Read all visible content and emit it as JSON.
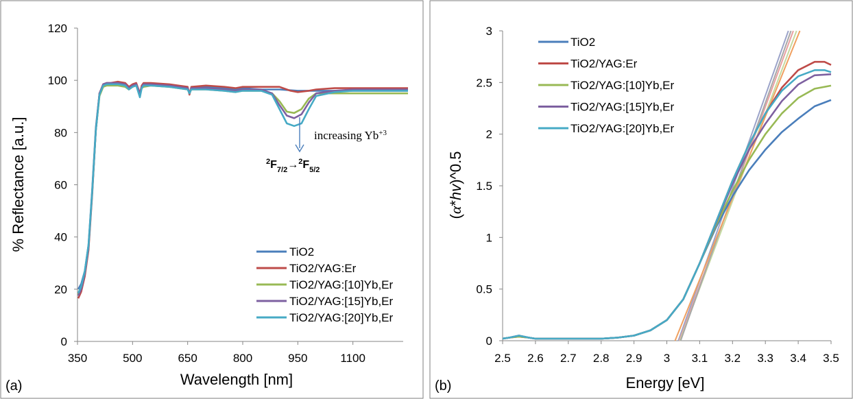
{
  "chart_data": [
    {
      "panel": "(a)",
      "type": "line",
      "xlabel": "Wavelength [nm]",
      "ylabel": "% Reflectance [a.u.]",
      "xlim": [
        350,
        1250
      ],
      "ylim": [
        0,
        120
      ],
      "xticks": [
        350,
        500,
        650,
        800,
        950,
        1100
      ],
      "yticks": [
        0,
        20,
        40,
        60,
        80,
        100,
        120
      ],
      "grid": false,
      "legend_position": "bottom-right",
      "annotations": {
        "increasing": "increasing Yb",
        "increasing_sup": "+3",
        "transition_left": "2",
        "transition_left_main": "F",
        "transition_left_sub": "7/2",
        "transition_arrow": "→",
        "transition_right": "2",
        "transition_right_main": "F",
        "transition_right_sub": "5/2"
      },
      "series": [
        {
          "name": "TiO2",
          "color": "#4a7ebb",
          "x": [
            352,
            360,
            370,
            380,
            390,
            400,
            410,
            420,
            430,
            440,
            460,
            480,
            490,
            500,
            510,
            520,
            525,
            530,
            550,
            600,
            650,
            655,
            660,
            700,
            750,
            780,
            800,
            850,
            900,
            950,
            1000,
            1050,
            1100,
            1150,
            1200,
            1250
          ],
          "y": [
            20,
            22,
            27,
            37,
            58,
            82,
            95,
            98,
            98.5,
            98.5,
            98.5,
            98,
            97,
            98,
            98,
            95,
            97.5,
            98,
            98.5,
            98,
            97,
            95,
            97,
            97.5,
            97,
            96.5,
            97,
            96.5,
            96.5,
            96,
            96,
            96,
            96,
            96,
            96,
            96
          ]
        },
        {
          "name": "TiO2/YAG:Er",
          "color": "#be4b48",
          "x": [
            352,
            360,
            370,
            380,
            390,
            400,
            410,
            420,
            430,
            440,
            460,
            480,
            490,
            500,
            510,
            520,
            525,
            530,
            550,
            600,
            650,
            655,
            660,
            700,
            750,
            780,
            800,
            850,
            900,
            930,
            950,
            980,
            1000,
            1050,
            1100,
            1150,
            1200,
            1250
          ],
          "y": [
            16.5,
            19,
            25,
            35,
            56,
            81,
            95,
            98.5,
            99,
            99,
            99.5,
            99,
            97.5,
            98.5,
            99,
            95,
            98,
            99,
            99,
            98.5,
            97.5,
            94.5,
            97.5,
            98,
            97.5,
            97,
            97.5,
            97.5,
            97.5,
            96,
            95.5,
            96,
            96.5,
            97,
            97,
            97,
            97,
            97
          ]
        },
        {
          "name": "TiO2/YAG:[10]Yb,Er",
          "color": "#98b954",
          "x": [
            352,
            360,
            370,
            380,
            390,
            400,
            410,
            420,
            430,
            440,
            460,
            480,
            490,
            500,
            510,
            520,
            525,
            530,
            550,
            600,
            650,
            655,
            660,
            700,
            750,
            780,
            800,
            850,
            880,
            900,
            920,
            940,
            960,
            980,
            1000,
            1050,
            1100,
            1150,
            1200,
            1250
          ],
          "y": [
            18,
            20.5,
            26,
            36,
            57,
            81,
            94,
            97.5,
            98,
            98,
            98,
            97.5,
            96.5,
            97.5,
            98,
            94.5,
            97,
            97.5,
            98,
            97.5,
            96.5,
            95,
            96.5,
            96.5,
            96,
            95.5,
            96,
            96,
            95,
            92,
            88,
            87.5,
            89,
            93,
            95,
            95,
            95,
            95,
            95,
            95
          ]
        },
        {
          "name": "TiO2/YAG:[15]Yb,Er",
          "color": "#7d60a0",
          "x": [
            352,
            360,
            370,
            380,
            390,
            400,
            410,
            420,
            430,
            440,
            460,
            480,
            490,
            500,
            510,
            520,
            525,
            530,
            550,
            600,
            650,
            655,
            660,
            700,
            750,
            780,
            800,
            850,
            880,
            900,
            920,
            940,
            960,
            980,
            1000,
            1050,
            1100,
            1150,
            1200,
            1250
          ],
          "y": [
            17.5,
            20,
            26,
            36,
            57,
            81,
            95,
            98.5,
            99,
            99,
            99,
            98.5,
            97,
            98,
            98.5,
            95,
            97.5,
            98.5,
            98.5,
            98,
            97,
            95,
            97,
            97,
            96.5,
            96,
            96.5,
            96.5,
            95,
            90.5,
            86.5,
            85.5,
            87,
            91.5,
            95,
            96,
            96.5,
            96.5,
            96.5,
            96.5
          ]
        },
        {
          "name": "TiO2/YAG:[20]Yb,Er",
          "color": "#46aac5",
          "x": [
            352,
            360,
            370,
            380,
            390,
            400,
            410,
            420,
            430,
            440,
            460,
            480,
            490,
            500,
            510,
            520,
            525,
            530,
            550,
            600,
            650,
            655,
            660,
            700,
            750,
            780,
            800,
            850,
            880,
            900,
            920,
            940,
            960,
            980,
            1000,
            1050,
            1100,
            1150,
            1200,
            1250
          ],
          "y": [
            18.5,
            21,
            27,
            37,
            57,
            81,
            94.5,
            98,
            98.5,
            98.5,
            98.5,
            98,
            96.5,
            97.5,
            98,
            93.5,
            97,
            98,
            98,
            97.5,
            96.5,
            95,
            96.5,
            96.5,
            96,
            95.5,
            96,
            96,
            94.5,
            89,
            83.5,
            82.5,
            83.5,
            89,
            94,
            95.5,
            96,
            96,
            96,
            96
          ]
        }
      ]
    },
    {
      "panel": "(b)",
      "type": "line",
      "xlabel": "Energy [eV]",
      "ylabel_parts": [
        "(",
        "α",
        "*",
        "hv",
        ")^0.5"
      ],
      "xlim": [
        2.5,
        3.5
      ],
      "ylim": [
        0,
        3
      ],
      "xticks": [
        2.5,
        2.6,
        2.7,
        2.8,
        2.9,
        3,
        3.1,
        3.2,
        3.3,
        3.4,
        3.5
      ],
      "yticks": [
        0,
        0.5,
        1,
        1.5,
        2,
        2.5,
        3
      ],
      "grid": false,
      "legend_position": "top-left",
      "series": [
        {
          "name": "TiO2",
          "color": "#4a7ebb",
          "x": [
            2.5,
            2.52,
            2.55,
            2.58,
            2.6,
            2.7,
            2.8,
            2.85,
            2.9,
            2.95,
            3.0,
            3.05,
            3.1,
            3.15,
            3.2,
            3.25,
            3.3,
            3.35,
            3.4,
            3.45,
            3.5
          ],
          "y": [
            0.02,
            0.03,
            0.05,
            0.03,
            0.02,
            0.02,
            0.02,
            0.03,
            0.05,
            0.1,
            0.2,
            0.4,
            0.75,
            1.1,
            1.4,
            1.65,
            1.85,
            2.02,
            2.15,
            2.27,
            2.33
          ]
        },
        {
          "name": "TiO2/YAG:Er",
          "color": "#be4b48",
          "x": [
            2.5,
            2.52,
            2.55,
            2.58,
            2.6,
            2.7,
            2.8,
            2.85,
            2.9,
            2.95,
            3.0,
            3.05,
            3.1,
            3.15,
            3.2,
            3.25,
            3.3,
            3.35,
            3.4,
            3.45,
            3.48,
            3.5
          ],
          "y": [
            0.02,
            0.03,
            0.04,
            0.03,
            0.02,
            0.02,
            0.02,
            0.03,
            0.05,
            0.1,
            0.2,
            0.4,
            0.75,
            1.15,
            1.55,
            1.9,
            2.2,
            2.45,
            2.62,
            2.7,
            2.7,
            2.67
          ]
        },
        {
          "name": "TiO2/YAG:[10]Yb,Er",
          "color": "#98b954",
          "x": [
            2.5,
            2.52,
            2.55,
            2.58,
            2.6,
            2.7,
            2.8,
            2.85,
            2.9,
            2.95,
            3.0,
            3.05,
            3.1,
            3.15,
            3.2,
            3.25,
            3.3,
            3.35,
            3.4,
            3.45,
            3.5
          ],
          "y": [
            0.02,
            0.03,
            0.04,
            0.03,
            0.02,
            0.02,
            0.02,
            0.03,
            0.05,
            0.1,
            0.2,
            0.4,
            0.75,
            1.12,
            1.45,
            1.75,
            2.0,
            2.2,
            2.35,
            2.44,
            2.47
          ]
        },
        {
          "name": "TiO2/YAG:[15]Yb,Er",
          "color": "#7d60a0",
          "x": [
            2.5,
            2.52,
            2.55,
            2.58,
            2.6,
            2.7,
            2.8,
            2.85,
            2.9,
            2.95,
            3.0,
            3.05,
            3.1,
            3.15,
            3.2,
            3.25,
            3.3,
            3.35,
            3.4,
            3.45,
            3.5
          ],
          "y": [
            0.02,
            0.03,
            0.05,
            0.03,
            0.02,
            0.02,
            0.02,
            0.03,
            0.05,
            0.1,
            0.2,
            0.4,
            0.75,
            1.14,
            1.52,
            1.85,
            2.1,
            2.32,
            2.48,
            2.57,
            2.58
          ]
        },
        {
          "name": "TiO2/YAG:[20]Yb,Er",
          "color": "#46aac5",
          "x": [
            2.5,
            2.52,
            2.55,
            2.58,
            2.6,
            2.7,
            2.8,
            2.85,
            2.9,
            2.95,
            3.0,
            3.05,
            3.1,
            3.15,
            3.2,
            3.25,
            3.3,
            3.35,
            3.4,
            3.45,
            3.48,
            3.5
          ],
          "y": [
            0.02,
            0.03,
            0.05,
            0.03,
            0.02,
            0.02,
            0.02,
            0.03,
            0.05,
            0.1,
            0.2,
            0.4,
            0.75,
            1.15,
            1.55,
            1.9,
            2.2,
            2.42,
            2.56,
            2.62,
            2.62,
            2.6
          ]
        }
      ],
      "tangent_lines": [
        {
          "color": "#9ba3c9",
          "x": [
            3.035,
            3.37
          ],
          "y": [
            0,
            3
          ]
        },
        {
          "color": "#e8a0a0",
          "x": [
            3.038,
            3.385
          ],
          "y": [
            0,
            3
          ]
        },
        {
          "color": "#c6d9a0",
          "x": [
            3.04,
            3.395
          ],
          "y": [
            0,
            3
          ]
        },
        {
          "color": "#a8a8a8",
          "x": [
            3.042,
            3.378
          ],
          "y": [
            0,
            3
          ]
        },
        {
          "color": "#f0a060",
          "x": [
            3.025,
            3.405
          ],
          "y": [
            0,
            3
          ]
        }
      ]
    }
  ],
  "panel_labels": {
    "a": "(a)",
    "b": "(b)"
  }
}
